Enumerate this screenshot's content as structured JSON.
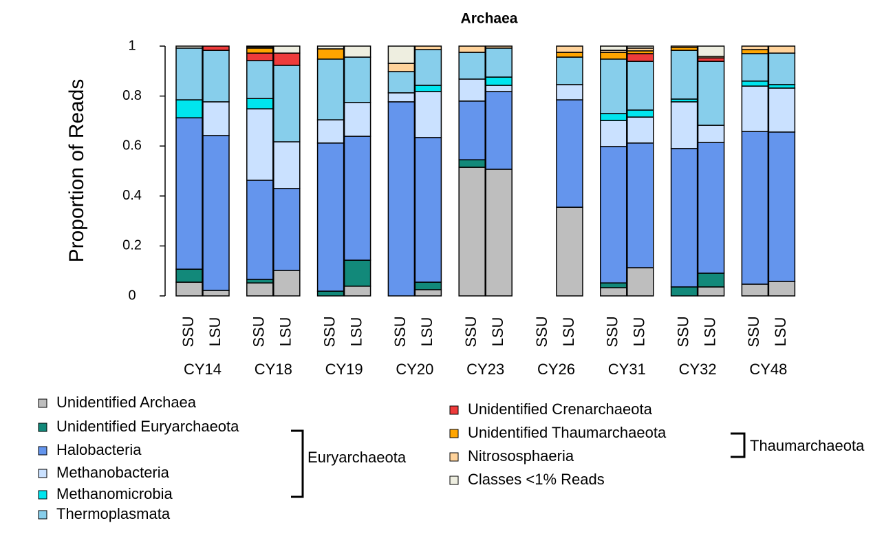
{
  "chart_data": {
    "type": "stacked_bar",
    "title": "Archaea",
    "y_label": "Proportion of Reads",
    "categories": [
      "SSU",
      "LSU",
      "SSU",
      "LSU",
      "SSU",
      "LSU",
      "SSU",
      "LSU",
      "SSU",
      "LSU",
      "SSU",
      "LSU",
      "SSU",
      "LSU",
      "SSU",
      "LSU",
      "SSU",
      "LSU"
    ],
    "groups": [
      "CY14",
      "CY18",
      "CY19",
      "CY20",
      "CY23",
      "CY26",
      "CY31",
      "CY32",
      "CY48"
    ],
    "ylim": [
      0,
      1
    ],
    "yticks": [
      0,
      0.2,
      0.4,
      0.6,
      0.8,
      1
    ],
    "series": [
      {
        "name": "Unidentified Archaea",
        "color": "#bebebe",
        "values": [
          0.055,
          0.022,
          0.052,
          0.102,
          0,
          0.039,
          0,
          0.025,
          0.515,
          0.507,
          0,
          0.355,
          0.033,
          0.113,
          0,
          0.036,
          0.047,
          0.058
        ]
      },
      {
        "name": "Unidentified Euryarchaeota",
        "color": "#12897a",
        "values": [
          0.052,
          0,
          0.014,
          0,
          0.019,
          0.104,
          0,
          0.03,
          0.03,
          0,
          0,
          0,
          0.019,
          0,
          0.036,
          0.055,
          0,
          0
        ]
      },
      {
        "name": "Halobacteria",
        "color": "#6495ed",
        "values": [
          0.606,
          0.62,
          0.397,
          0.328,
          0.593,
          0.496,
          0.777,
          0.579,
          0.235,
          0.311,
          0,
          0.43,
          0.546,
          0.499,
          0.554,
          0.523,
          0.611,
          0.598
        ]
      },
      {
        "name": "Methanobacteria",
        "color": "#cae1ff",
        "values": [
          0,
          0.135,
          0.286,
          0.187,
          0.093,
          0.135,
          0.036,
          0.184,
          0.088,
          0.025,
          0,
          0.061,
          0.104,
          0.104,
          0.187,
          0.069,
          0.182,
          0.176
        ]
      },
      {
        "name": "Methanomicrobia",
        "color": "#00e5ee",
        "values": [
          0.072,
          0,
          0.041,
          0,
          0,
          0,
          0,
          0.025,
          0,
          0.033,
          0,
          0,
          0.028,
          0.028,
          0.011,
          0,
          0.02,
          0.014
        ]
      },
      {
        "name": "Thermoplasmata",
        "color": "#87ceeb",
        "values": [
          0.207,
          0.206,
          0.152,
          0.306,
          0.243,
          0.182,
          0.085,
          0.143,
          0.107,
          0.116,
          0,
          0.11,
          0.218,
          0.195,
          0.195,
          0.256,
          0.11,
          0.126
        ]
      },
      {
        "name": "Unidentified Crenarchaeota",
        "color": "#ee3b3b",
        "values": [
          0,
          0.017,
          0.03,
          0.049,
          0,
          0,
          0,
          0,
          0,
          0,
          0,
          0,
          0,
          0.031,
          0,
          0.014,
          0,
          0
        ]
      },
      {
        "name": "Unidentified Thaumarchaeota",
        "color": "#ffa500",
        "values": [
          0,
          0,
          0.02,
          0,
          0.041,
          0,
          0,
          0,
          0,
          0,
          0,
          0.019,
          0.027,
          0.011,
          0.012,
          0,
          0.016,
          0
        ]
      },
      {
        "name": "Nitrososphaeria",
        "color": "#ffd39b",
        "values": [
          0,
          0,
          0.005,
          0,
          0,
          0,
          0.033,
          0.014,
          0.025,
          0.008,
          0,
          0.025,
          0.008,
          0.011,
          0.005,
          0.006,
          0.014,
          0.028
        ]
      },
      {
        "name": "Classes <1% Reads",
        "color": "#eeeee0",
        "values": [
          0.008,
          0,
          0.003,
          0.028,
          0.011,
          0.044,
          0.069,
          0,
          0,
          0,
          0,
          0,
          0.017,
          0.008,
          0,
          0.041,
          0,
          0
        ]
      }
    ],
    "annotations": [
      "Euryarchaeota",
      "Thaumarchaeota"
    ]
  }
}
